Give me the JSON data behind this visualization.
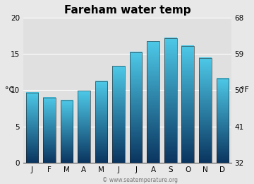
{
  "title": "Fareham water temp",
  "months": [
    "J",
    "F",
    "M",
    "A",
    "M",
    "J",
    "J",
    "A",
    "S",
    "O",
    "N",
    "D"
  ],
  "values_c": [
    9.7,
    9.0,
    8.6,
    9.9,
    11.2,
    13.3,
    15.2,
    16.7,
    17.1,
    16.1,
    14.4,
    11.6
  ],
  "ylim_c": [
    0,
    20
  ],
  "yticks_c": [
    0,
    5,
    10,
    15,
    20
  ],
  "yticks_f": [
    32,
    41,
    50,
    59,
    68
  ],
  "ylabel_left": "°C",
  "ylabel_right": "°F",
  "bar_color_top": "#4ec9e8",
  "bar_color_bottom": "#0a3560",
  "bg_color": "#e8e8e8",
  "plot_bg": "#e0e0e0",
  "grid_color": "#ffffff",
  "title_fontsize": 11,
  "tick_fontsize": 7.5,
  "label_fontsize": 8,
  "watermark": "© www.seatemperature.org",
  "bar_width": 0.72
}
